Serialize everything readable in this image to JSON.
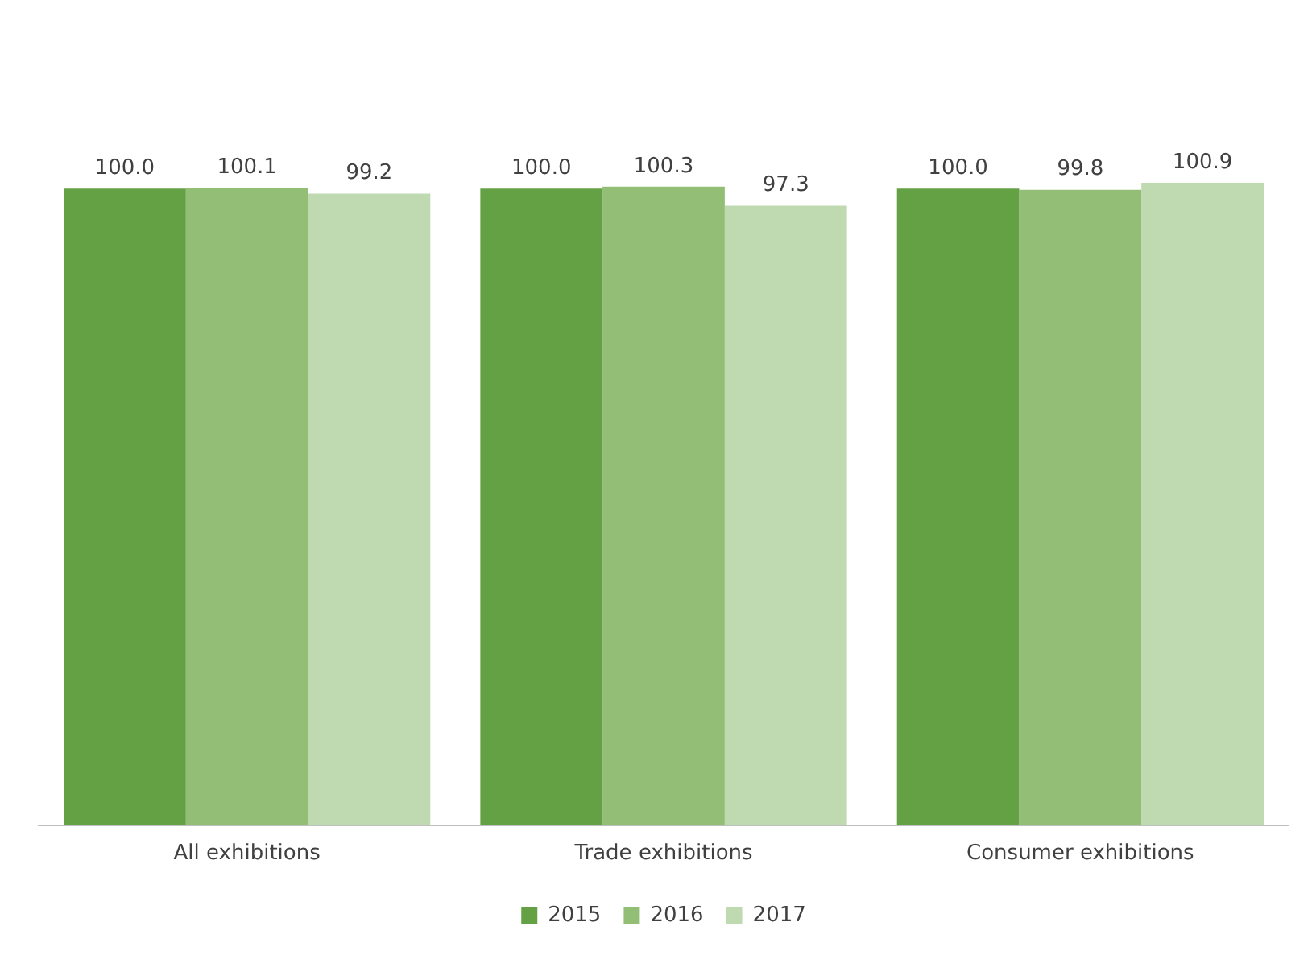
{
  "chart_data": {
    "type": "bar",
    "categories": [
      "All exhibitions",
      "Trade exhibitions",
      "Consumer exhibitions"
    ],
    "series": [
      {
        "name": "2015",
        "color": "#64a044",
        "values": [
          100.0,
          100.0,
          100.0
        ],
        "value_labels": [
          "100.0",
          "100.0",
          "100.0"
        ]
      },
      {
        "name": "2016",
        "color": "#92bf75",
        "values": [
          100.1,
          100.3,
          99.8
        ],
        "value_labels": [
          "100.1",
          "100.3",
          "99.8"
        ]
      },
      {
        "name": "2017",
        "color": "#bfd9b0",
        "values": [
          99.2,
          97.3,
          100.9
        ],
        "value_labels": [
          "99.2",
          "97.3",
          "100.9"
        ]
      }
    ],
    "tick_labels": "x",
    "legend": "bottom",
    "grid": false
  }
}
